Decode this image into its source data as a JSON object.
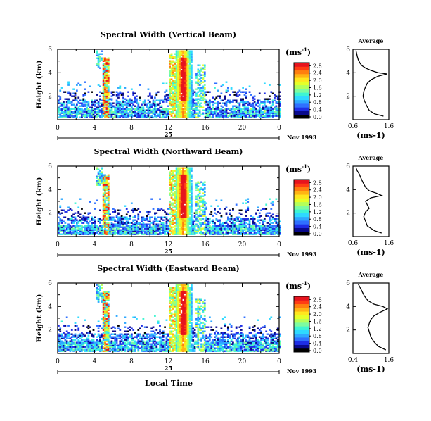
{
  "x_axis_label": "Local Time",
  "date_label": "Nov 1993",
  "day_label": "25",
  "colorbar_unit": "(ms",
  "colorbar_unit_sup": "-1",
  "colorbar_unit_close": ")",
  "colormap": [
    "#000000",
    "#0a0a8c",
    "#1e2ee6",
    "#2f70ff",
    "#2ea8ff",
    "#2ed9ff",
    "#3ef5d2",
    "#7dfca0",
    "#b4ff5a",
    "#e6ff28",
    "#ffe61e",
    "#ffb414",
    "#ff7f0f",
    "#ff3c14",
    "#e6141e"
  ],
  "chart_data": [
    {
      "type": "heatmap",
      "title": "Spectral Width (Vertical Beam)",
      "ylabel": "Height (km)",
      "xlim": [
        0,
        24
      ],
      "ylim": [
        0,
        6
      ],
      "xticks": [
        "0",
        "4",
        "8",
        "12",
        "16",
        "20",
        "0"
      ],
      "yticks": [
        "2",
        "4",
        "6"
      ],
      "colorbar": {
        "ticks": [
          "0.0",
          "0.4",
          "0.8",
          "1.2",
          "1.6",
          "2.0",
          "2.4",
          "2.8"
        ],
        "vmin": 0,
        "vmax": 2.8,
        "unit": "ms-1"
      },
      "profile": {
        "title": "Average",
        "xlim": [
          0.6,
          1.6
        ],
        "xticks": [
          "0.6",
          "1.6"
        ],
        "xlabel": "(ms-1)",
        "ylim": [
          0,
          6
        ],
        "yticks": [
          "2",
          "4",
          "6"
        ],
        "points": [
          [
            1.45,
            0.3
          ],
          [
            1.2,
            0.5
          ],
          [
            1.05,
            0.8
          ],
          [
            0.98,
            1.2
          ],
          [
            0.92,
            1.6
          ],
          [
            0.88,
            2.0
          ],
          [
            0.9,
            2.4
          ],
          [
            0.95,
            2.8
          ],
          [
            1.0,
            3.1
          ],
          [
            1.1,
            3.4
          ],
          [
            1.3,
            3.7
          ],
          [
            1.55,
            3.9
          ],
          [
            1.3,
            4.0
          ],
          [
            1.1,
            4.2
          ],
          [
            0.95,
            4.4
          ],
          [
            0.85,
            4.6
          ],
          [
            0.8,
            4.8
          ],
          [
            0.75,
            5.1
          ],
          [
            0.72,
            5.4
          ],
          [
            0.7,
            5.7
          ],
          [
            0.68,
            5.9
          ]
        ]
      }
    },
    {
      "type": "heatmap",
      "title": "Spectral Width (Northward Beam)",
      "ylabel": "Height (km)",
      "xlim": [
        0,
        24
      ],
      "ylim": [
        0,
        6
      ],
      "xticks": [
        "0",
        "4",
        "8",
        "12",
        "16",
        "20",
        "0"
      ],
      "yticks": [
        "2",
        "4",
        "6"
      ],
      "colorbar": {
        "ticks": [
          "0.0",
          "0.4",
          "0.8",
          "1.2",
          "1.6",
          "2.0",
          "2.4",
          "2.8"
        ],
        "vmin": 0,
        "vmax": 2.8,
        "unit": "ms-1"
      },
      "profile": {
        "title": "Average",
        "xlim": [
          0.6,
          1.6
        ],
        "xticks": [
          "0.6",
          "1.6"
        ],
        "xlabel": "(ms-1)",
        "ylim": [
          0,
          6
        ],
        "yticks": [
          "2",
          "4",
          "6"
        ],
        "points": [
          [
            1.4,
            0.3
          ],
          [
            1.2,
            0.5
          ],
          [
            1.0,
            0.9
          ],
          [
            0.95,
            1.3
          ],
          [
            0.9,
            1.7
          ],
          [
            0.95,
            2.1
          ],
          [
            1.05,
            2.4
          ],
          [
            1.0,
            2.7
          ],
          [
            0.95,
            3.0
          ],
          [
            1.1,
            3.3
          ],
          [
            1.4,
            3.5
          ],
          [
            1.25,
            3.7
          ],
          [
            1.05,
            3.9
          ],
          [
            0.95,
            4.2
          ],
          [
            0.88,
            4.6
          ],
          [
            0.82,
            5.0
          ],
          [
            0.78,
            5.3
          ],
          [
            0.72,
            5.6
          ],
          [
            0.68,
            5.9
          ]
        ]
      }
    },
    {
      "type": "heatmap",
      "title": "Spectral Width (Eastward Beam)",
      "ylabel": "Height (km)",
      "xlim": [
        0,
        24
      ],
      "ylim": [
        0,
        6
      ],
      "xticks": [
        "0",
        "4",
        "8",
        "12",
        "16",
        "20",
        "0"
      ],
      "yticks": [
        "2",
        "4",
        "6"
      ],
      "colorbar": {
        "ticks": [
          "0.0",
          "0.4",
          "0.8",
          "1.2",
          "1.6",
          "2.0",
          "2.4",
          "2.8"
        ],
        "vmin": 0,
        "vmax": 2.8,
        "unit": "ms-1"
      },
      "profile": {
        "title": "Average",
        "xlim": [
          0.4,
          1.6
        ],
        "xticks": [
          "0.4",
          "1.6"
        ],
        "xlabel": "(ms-1)",
        "ylim": [
          0,
          6
        ],
        "yticks": [
          "2",
          "4",
          "6"
        ],
        "points": [
          [
            1.5,
            0.3
          ],
          [
            1.25,
            0.6
          ],
          [
            1.1,
            1.0
          ],
          [
            1.0,
            1.4
          ],
          [
            0.95,
            1.8
          ],
          [
            0.9,
            2.2
          ],
          [
            0.95,
            2.6
          ],
          [
            1.0,
            2.9
          ],
          [
            1.1,
            3.2
          ],
          [
            1.3,
            3.5
          ],
          [
            1.55,
            3.8
          ],
          [
            1.4,
            4.0
          ],
          [
            1.1,
            4.2
          ],
          [
            0.9,
            4.5
          ],
          [
            0.78,
            4.9
          ],
          [
            0.7,
            5.3
          ],
          [
            0.62,
            5.7
          ],
          [
            0.58,
            5.9
          ]
        ]
      }
    }
  ]
}
